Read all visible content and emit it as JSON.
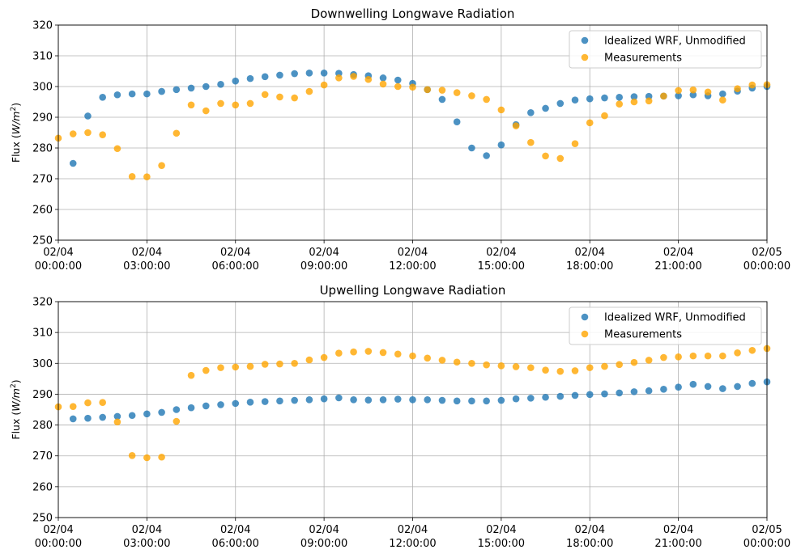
{
  "colors": {
    "wrf": "#1f77b4",
    "meas": "#ffa500",
    "grid": "#b0b0b0"
  },
  "x_ticks": [
    [
      "02/04",
      "00:00:00"
    ],
    [
      "02/04",
      "03:00:00"
    ],
    [
      "02/04",
      "06:00:00"
    ],
    [
      "02/04",
      "09:00:00"
    ],
    [
      "02/04",
      "12:00:00"
    ],
    [
      "02/04",
      "15:00:00"
    ],
    [
      "02/04",
      "18:00:00"
    ],
    [
      "02/04",
      "21:00:00"
    ],
    [
      "02/05",
      "00:00:00"
    ]
  ],
  "chart_data": [
    {
      "type": "scatter",
      "title": "Downwelling Longwave Radiation",
      "ylabel": "Flux (W/m²)",
      "xlabel": "",
      "xlim": [
        "02/04 00:00:00",
        "02/05 00:00:00"
      ],
      "ylim": [
        250,
        320
      ],
      "y_ticks": [
        250,
        260,
        270,
        280,
        290,
        300,
        310,
        320
      ],
      "grid": true,
      "legend": "top-right",
      "series": [
        {
          "name": "Idealized WRF, Unmodified",
          "x_hours": [
            0.5,
            1,
            1.5,
            2,
            2.5,
            3,
            3.5,
            4,
            4.5,
            5,
            5.5,
            6,
            6.5,
            7,
            7.5,
            8,
            8.5,
            9,
            9.5,
            10,
            10.5,
            11,
            11.5,
            12,
            12.5,
            13,
            13.5,
            14,
            14.5,
            15,
            15.5,
            16,
            16.5,
            17,
            17.5,
            18,
            18.5,
            19,
            19.5,
            20,
            20.5,
            21,
            21.5,
            22,
            22.5,
            23,
            23.5,
            24
          ],
          "values": [
            275.0,
            290.4,
            296.5,
            297.3,
            297.6,
            297.6,
            298.4,
            299.0,
            299.5,
            300.0,
            300.7,
            301.8,
            302.6,
            303.2,
            303.7,
            304.2,
            304.4,
            304.4,
            304.3,
            303.9,
            303.5,
            302.8,
            302.1,
            301.0,
            299.0,
            295.8,
            288.5,
            280.0,
            277.5,
            281.0,
            287.6,
            291.5,
            292.9,
            294.5,
            295.6,
            296.0,
            296.3,
            296.5,
            296.7,
            296.8,
            296.9,
            297.0,
            297.3,
            297.0,
            297.6,
            298.5,
            299.5,
            300.0
          ]
        },
        {
          "name": "Measurements",
          "x_hours": [
            0,
            0.5,
            1,
            1.5,
            2,
            2.5,
            3,
            3.5,
            4,
            4.5,
            5,
            5.5,
            6,
            6.5,
            7,
            7.5,
            8,
            8.5,
            9,
            9.5,
            10,
            10.5,
            11,
            11.5,
            12,
            12.5,
            13,
            13.5,
            14,
            14.5,
            15,
            15.5,
            16,
            16.5,
            17,
            17.5,
            18,
            18.5,
            19,
            19.5,
            20,
            20.5,
            21,
            21.5,
            22,
            22.5,
            23,
            23.5,
            24
          ],
          "values": [
            283.2,
            284.6,
            285.0,
            284.3,
            279.8,
            270.7,
            270.6,
            274.3,
            284.8,
            294.0,
            292.1,
            294.5,
            294.0,
            294.5,
            297.4,
            296.6,
            296.3,
            298.4,
            300.5,
            302.8,
            303.3,
            302.3,
            300.8,
            300.0,
            299.8,
            299.0,
            298.8,
            298.0,
            297.0,
            295.8,
            292.4,
            287.2,
            281.8,
            277.4,
            276.6,
            281.4,
            288.2,
            290.5,
            294.3,
            295.0,
            295.3,
            296.9,
            298.7,
            298.9,
            298.2,
            295.6,
            299.3,
            300.5,
            300.6
          ]
        }
      ]
    },
    {
      "type": "scatter",
      "title": "Upwelling Longwave Radiation",
      "ylabel": "Flux (W/m²)",
      "xlabel": "",
      "xlim": [
        "02/04 00:00:00",
        "02/05 00:00:00"
      ],
      "ylim": [
        250,
        320
      ],
      "y_ticks": [
        250,
        260,
        270,
        280,
        290,
        300,
        310,
        320
      ],
      "grid": true,
      "legend": "top-right",
      "series": [
        {
          "name": "Idealized WRF, Unmodified",
          "x_hours": [
            0.5,
            1,
            1.5,
            2,
            2.5,
            3,
            3.5,
            4,
            4.5,
            5,
            5.5,
            6,
            6.5,
            7,
            7.5,
            8,
            8.5,
            9,
            9.5,
            10,
            10.5,
            11,
            11.5,
            12,
            12.5,
            13,
            13.5,
            14,
            14.5,
            15,
            15.5,
            16,
            16.5,
            17,
            17.5,
            18,
            18.5,
            19,
            19.5,
            20,
            20.5,
            21,
            21.5,
            22,
            22.5,
            23,
            23.5,
            24
          ],
          "values": [
            282.0,
            282.2,
            282.5,
            282.8,
            283.1,
            283.6,
            284.1,
            285.0,
            285.6,
            286.2,
            286.6,
            287.0,
            287.4,
            287.6,
            287.8,
            288.0,
            288.2,
            288.5,
            288.8,
            288.2,
            288.1,
            288.2,
            288.4,
            288.2,
            288.2,
            288.0,
            287.8,
            287.8,
            287.8,
            288.0,
            288.5,
            288.7,
            289.0,
            289.3,
            289.6,
            289.9,
            290.1,
            290.4,
            290.8,
            291.1,
            291.6,
            292.3,
            293.2,
            292.5,
            291.8,
            292.5,
            293.5,
            294.0
          ]
        },
        {
          "name": "Measurements",
          "x_hours": [
            0,
            0.5,
            1,
            1.5,
            2,
            2.5,
            3,
            3.5,
            4,
            4.5,
            5,
            5.5,
            6,
            6.5,
            7,
            7.5,
            8,
            8.5,
            9,
            9.5,
            10,
            10.5,
            11,
            11.5,
            12,
            12.5,
            13,
            13.5,
            14,
            14.5,
            15,
            15.5,
            16,
            16.5,
            17,
            17.5,
            18,
            18.5,
            19,
            19.5,
            20,
            20.5,
            21,
            21.5,
            22,
            22.5,
            23,
            23.5,
            24
          ],
          "values": [
            285.9,
            286.0,
            287.2,
            287.3,
            281.0,
            270.1,
            269.4,
            269.6,
            281.2,
            296.1,
            297.7,
            298.6,
            298.8,
            299.0,
            299.7,
            299.8,
            300.0,
            301.1,
            301.9,
            303.3,
            303.7,
            303.9,
            303.5,
            303.0,
            302.4,
            301.7,
            301.0,
            300.4,
            300.0,
            299.5,
            299.2,
            298.9,
            298.6,
            297.8,
            297.4,
            297.6,
            298.6,
            299.0,
            299.6,
            300.3,
            301.0,
            301.9,
            302.1,
            302.4,
            302.4,
            302.4,
            303.4,
            304.2,
            304.8
          ]
        }
      ]
    }
  ]
}
